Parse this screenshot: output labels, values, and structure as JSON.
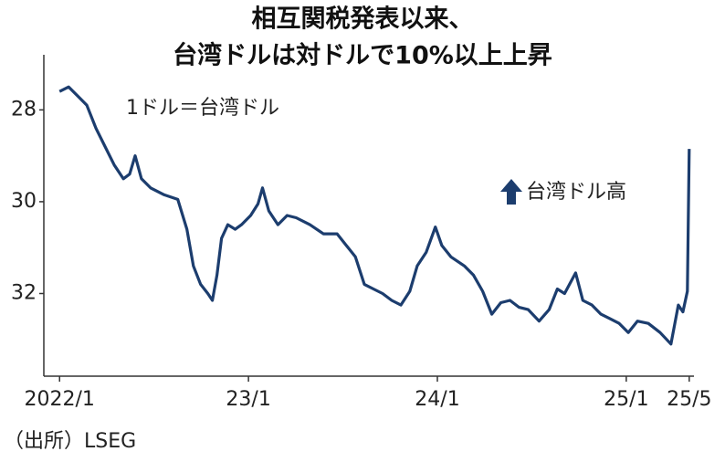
{
  "chart_data": {
    "type": "line",
    "title": [
      "相互関税発表以来、",
      "台湾ドルは対ドルで10%以上上昇"
    ],
    "annotations": [
      "1ドル＝台湾ドル",
      "台湾ドル高"
    ],
    "source": "（出所）LSEG",
    "x": [
      0,
      0.58,
      1.16,
      1.73,
      2.31,
      2.89,
      3.47,
      4.05,
      4.45,
      4.8,
      5.2,
      5.78,
      6.65,
      7.51,
      8.09,
      8.5,
      8.96,
      9.42,
      9.71,
      10.0,
      10.29,
      10.69,
      11.16,
      11.56,
      12.14,
      12.6,
      12.89,
      13.29,
      13.87,
      14.45,
      15.03,
      15.9,
      16.76,
      17.63,
      18.21,
      18.79,
      19.36,
      19.94,
      20.52,
      21.1,
      21.68,
      22.25,
      22.72,
      23.29,
      23.87,
      24.28,
      24.86,
      25.72,
      26.3,
      26.88,
      27.46,
      28.03,
      28.61,
      29.19,
      29.77,
      30.46,
      31.1,
      31.62,
      32.08,
      32.78,
      33.24,
      33.82,
      34.39,
      34.97,
      35.55,
      36.13,
      36.71,
      37.4,
      38.15,
      38.84,
      39.31,
      39.6,
      39.88,
      40.0
    ],
    "series": [
      {
        "name": "台湾ドル",
        "color": "#1c3d6e",
        "values": [
          27.6,
          27.5,
          27.7,
          27.9,
          28.4,
          28.8,
          29.2,
          29.5,
          29.4,
          29.0,
          29.5,
          29.7,
          29.85,
          29.95,
          30.6,
          31.4,
          31.8,
          32.0,
          32.15,
          31.6,
          30.8,
          30.5,
          30.6,
          30.5,
          30.3,
          30.05,
          29.7,
          30.2,
          30.5,
          30.3,
          30.35,
          30.5,
          30.7,
          30.7,
          30.95,
          31.2,
          31.8,
          31.9,
          32.0,
          32.15,
          32.25,
          31.95,
          31.4,
          31.1,
          30.55,
          30.95,
          31.2,
          31.4,
          31.6,
          31.95,
          32.45,
          32.2,
          32.15,
          32.3,
          32.35,
          32.6,
          32.35,
          31.9,
          32.0,
          31.55,
          32.15,
          32.25,
          32.45,
          32.55,
          32.65,
          32.85,
          32.6,
          32.65,
          32.85,
          33.1,
          32.25,
          32.4,
          31.95,
          28.85
        ]
      }
    ],
    "xlim": [
      -1,
      40.3
    ],
    "xticks": [
      {
        "value": 0,
        "label": "2022/1"
      },
      {
        "value": 12,
        "label": "23/1"
      },
      {
        "value": 24,
        "label": "24/1"
      },
      {
        "value": 36,
        "label": "25/1"
      },
      {
        "value": 40,
        "label": "25/5"
      }
    ],
    "ylim": [
      26.8,
      33.8
    ],
    "yticks": [
      28,
      30,
      32
    ],
    "y_inverted": true,
    "grid": false
  }
}
